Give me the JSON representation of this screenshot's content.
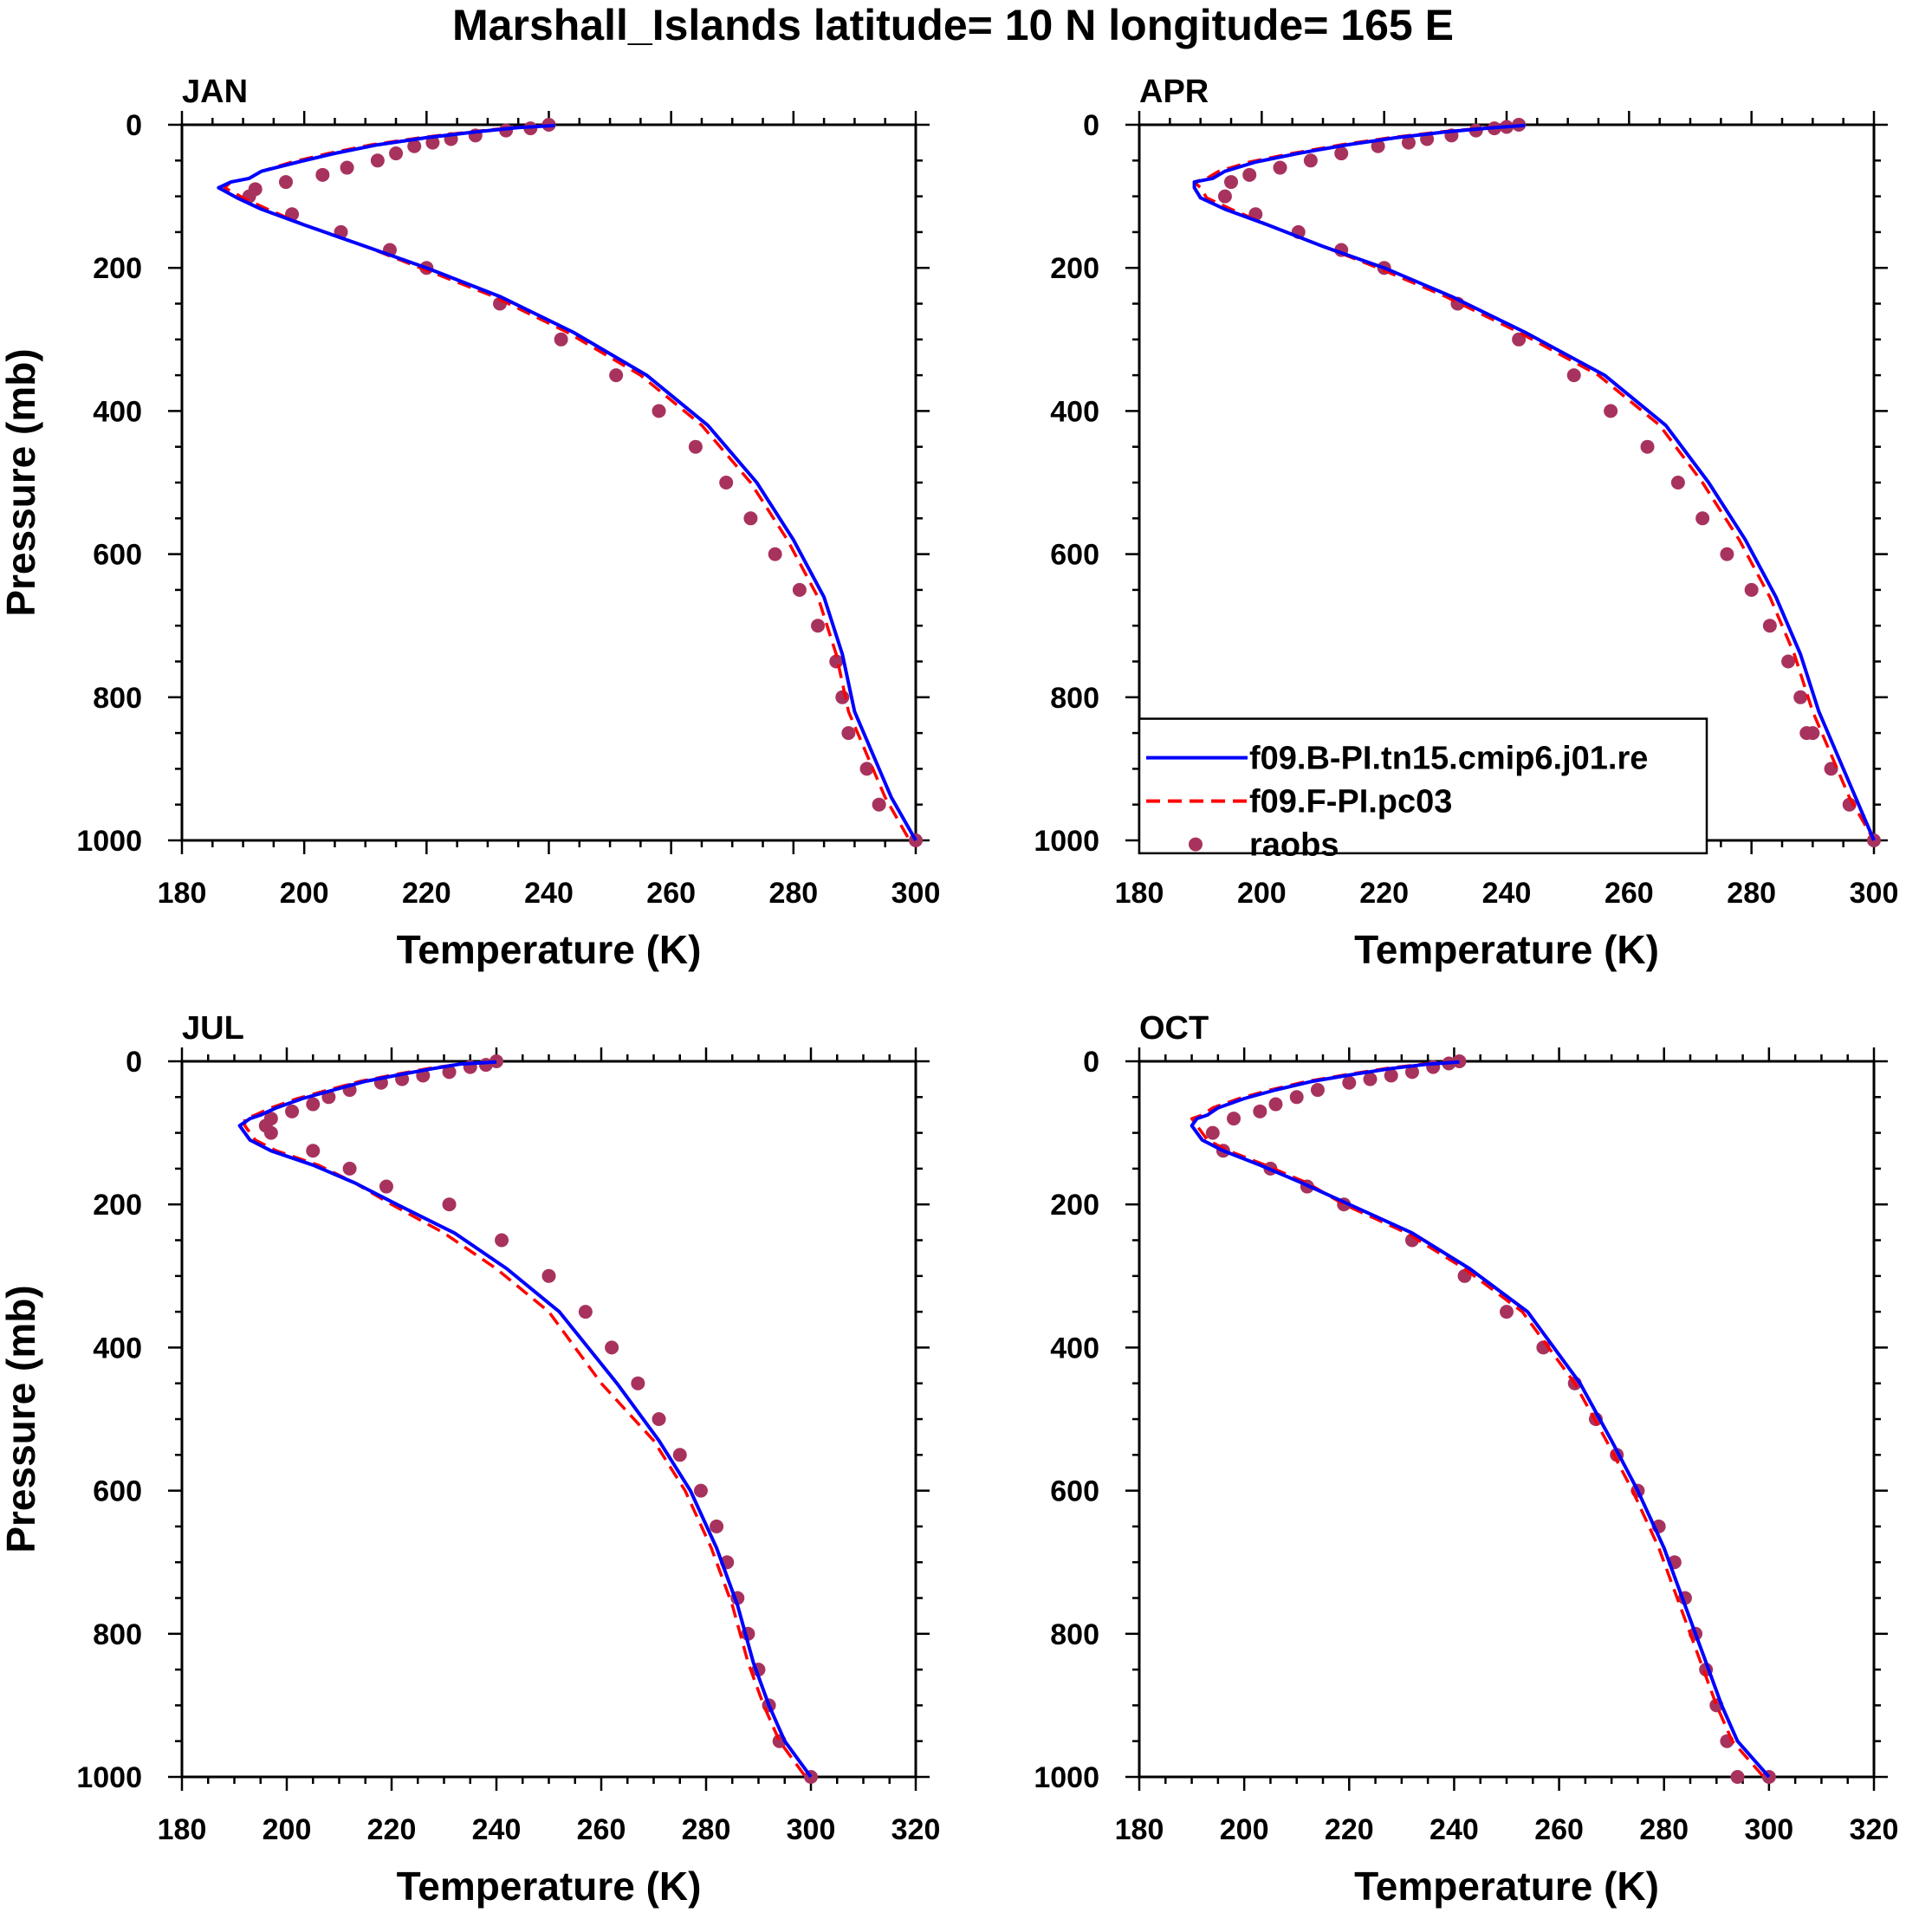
{
  "title": "Marshall_Islands  latitude= 10 N longitude= 165 E",
  "legend": {
    "entries": [
      {
        "label": "f09.B-PI.tn15.cmip6.j01.re",
        "color": "#0000ff",
        "style": "solid"
      },
      {
        "label": "f09.F-PI.pc03",
        "color": "#ff0000",
        "style": "dashed"
      },
      {
        "label": "raobs",
        "color": "#a8325e",
        "style": "marker"
      }
    ]
  },
  "chart_data": [
    {
      "type": "line",
      "title": "JAN",
      "xlabel": "Temperature (K)",
      "ylabel": "Pressure (mb)",
      "xlim": [
        180,
        300
      ],
      "ylim": [
        1000,
        0
      ],
      "xticks": [
        "180",
        "200",
        "220",
        "240",
        "260",
        "280",
        "300"
      ],
      "yticks": [
        "0",
        "200",
        "400",
        "600",
        "800",
        "1000"
      ],
      "series": [
        {
          "name": "f09.B-PI.tn15.cmip6.j01.re",
          "color": "#0000ff",
          "style": "solid",
          "T": [
            241,
            235,
            228,
            220,
            212,
            205,
            199,
            193,
            191,
            188,
            186,
            189,
            193,
            200,
            210,
            220,
            232,
            244,
            256,
            266,
            274,
            280,
            285,
            288,
            290,
            293,
            296,
            300
          ],
          "P": [
            1,
            4,
            10,
            18,
            28,
            40,
            52,
            65,
            75,
            80,
            88,
            102,
            118,
            140,
            170,
            200,
            240,
            290,
            350,
            420,
            500,
            580,
            660,
            740,
            820,
            880,
            940,
            1000
          ]
        },
        {
          "name": "f09.F-PI.pc03",
          "color": "#ff0000",
          "style": "dashed",
          "T": [
            240,
            234,
            227,
            219,
            211,
            204,
            198,
            193,
            191,
            188,
            187,
            190,
            194,
            200,
            210,
            219,
            231,
            243,
            255,
            265,
            273,
            279,
            284,
            287,
            289,
            292,
            295,
            299
          ],
          "P": [
            1,
            4,
            10,
            18,
            28,
            40,
            52,
            65,
            75,
            80,
            88,
            102,
            118,
            140,
            170,
            200,
            240,
            290,
            350,
            420,
            500,
            580,
            660,
            740,
            820,
            880,
            940,
            1000
          ]
        }
      ],
      "raobs": {
        "T": [
          240,
          237,
          233,
          228,
          224,
          221,
          218,
          215,
          212,
          207,
          203,
          197,
          192,
          191,
          198,
          206,
          214,
          220,
          232,
          242,
          251,
          258,
          264,
          269,
          273,
          277,
          281,
          284,
          287,
          288,
          289,
          292,
          294,
          300
        ],
        "P": [
          0,
          5,
          8,
          15,
          20,
          25,
          30,
          40,
          50,
          60,
          70,
          80,
          90,
          100,
          125,
          150,
          175,
          200,
          250,
          300,
          350,
          400,
          450,
          500,
          550,
          600,
          650,
          700,
          750,
          800,
          850,
          900,
          950,
          1000
        ]
      }
    },
    {
      "type": "line",
      "title": "APR",
      "xlabel": "Temperature (K)",
      "ylabel": "",
      "xlim": [
        180,
        300
      ],
      "ylim": [
        1000,
        0
      ],
      "xticks": [
        "180",
        "200",
        "220",
        "240",
        "260",
        "280",
        "300"
      ],
      "yticks": [
        "0",
        "200",
        "400",
        "600",
        "800",
        "1000"
      ],
      "series": [
        {
          "name": "f09.B-PI.tn15.cmip6.j01.re",
          "color": "#0000ff",
          "style": "solid",
          "T": [
            243,
            238,
            230,
            222,
            214,
            206,
            199,
            194,
            192,
            189,
            189,
            190,
            194,
            201,
            210,
            220,
            231,
            243,
            256,
            266,
            273,
            279,
            284,
            288,
            291,
            294,
            297,
            300
          ],
          "P": [
            1,
            4,
            10,
            18,
            28,
            40,
            52,
            65,
            75,
            80,
            88,
            102,
            118,
            140,
            170,
            200,
            240,
            290,
            350,
            420,
            500,
            580,
            660,
            740,
            820,
            880,
            940,
            1000
          ]
        },
        {
          "name": "f09.F-PI.pc03",
          "color": "#ff0000",
          "style": "dashed",
          "T": [
            242,
            237,
            229,
            221,
            213,
            205,
            198,
            193,
            191,
            189,
            190,
            191,
            195,
            201,
            210,
            219,
            230,
            242,
            255,
            265,
            272,
            278,
            283,
            287,
            290,
            293,
            296,
            300
          ],
          "P": [
            1,
            4,
            10,
            18,
            28,
            40,
            52,
            65,
            75,
            80,
            88,
            102,
            118,
            140,
            170,
            200,
            240,
            290,
            350,
            420,
            500,
            580,
            660,
            740,
            820,
            880,
            940,
            1000
          ]
        }
      ],
      "raobs": {
        "T": [
          242,
          240,
          238,
          235,
          231,
          227,
          224,
          219,
          213,
          208,
          203,
          198,
          195,
          194,
          199,
          206,
          213,
          220,
          232,
          242,
          251,
          257,
          263,
          268,
          272,
          276,
          280,
          283,
          286,
          288,
          289,
          290,
          293,
          296,
          300
        ],
        "P": [
          0,
          3,
          5,
          8,
          15,
          20,
          25,
          30,
          40,
          50,
          60,
          70,
          80,
          100,
          125,
          150,
          175,
          200,
          250,
          300,
          350,
          400,
          450,
          500,
          550,
          600,
          650,
          700,
          750,
          800,
          850,
          850,
          900,
          950,
          1000
        ]
      }
    },
    {
      "type": "line",
      "title": "JUL",
      "xlabel": "Temperature (K)",
      "ylabel": "Pressure (mb)",
      "xlim": [
        180,
        320
      ],
      "ylim": [
        1000,
        0
      ],
      "xticks": [
        "180",
        "200",
        "220",
        "240",
        "260",
        "280",
        "300",
        "320"
      ],
      "yticks": [
        "0",
        "200",
        "400",
        "600",
        "800",
        "1000"
      ],
      "series": [
        {
          "name": "f09.B-PI.tn15.cmip6.j01.re",
          "color": "#0000ff",
          "style": "solid",
          "T": [
            240,
            233,
            228,
            222,
            215,
            209,
            203,
            198,
            195,
            193,
            191,
            193,
            197,
            205,
            213,
            221,
            232,
            242,
            252,
            263,
            271,
            277,
            282,
            286,
            289,
            292,
            295,
            300
          ],
          "P": [
            1,
            4,
            10,
            18,
            28,
            40,
            52,
            65,
            75,
            80,
            90,
            110,
            125,
            145,
            170,
            200,
            240,
            290,
            350,
            450,
            530,
            600,
            680,
            760,
            840,
            900,
            950,
            1000
          ]
        },
        {
          "name": "f09.F-PI.pc03",
          "color": "#ff0000",
          "style": "dashed",
          "T": [
            240,
            233,
            227,
            221,
            214,
            208,
            202,
            197,
            194,
            192,
            192,
            194,
            198,
            206,
            213,
            220,
            230,
            240,
            250,
            260,
            270,
            276,
            281,
            285,
            288,
            291,
            294,
            299
          ],
          "P": [
            1,
            4,
            10,
            18,
            28,
            40,
            52,
            65,
            75,
            80,
            90,
            110,
            125,
            145,
            170,
            200,
            240,
            290,
            350,
            450,
            530,
            600,
            680,
            760,
            840,
            900,
            950,
            1000
          ]
        }
      ],
      "raobs": {
        "T": [
          240,
          238,
          235,
          231,
          226,
          222,
          218,
          212,
          208,
          205,
          201,
          197,
          196,
          197,
          205,
          212,
          219,
          231,
          241,
          250,
          257,
          262,
          267,
          271,
          275,
          279,
          282,
          284,
          286,
          288,
          290,
          292,
          294,
          300
        ],
        "P": [
          0,
          5,
          8,
          15,
          20,
          25,
          30,
          40,
          50,
          60,
          70,
          80,
          90,
          100,
          125,
          150,
          175,
          200,
          250,
          300,
          350,
          400,
          450,
          500,
          550,
          600,
          650,
          700,
          750,
          800,
          850,
          900,
          950,
          1000
        ]
      }
    },
    {
      "type": "line",
      "title": "OCT",
      "xlabel": "Temperature (K)",
      "ylabel": "",
      "xlim": [
        180,
        320
      ],
      "ylim": [
        1000,
        0
      ],
      "xticks": [
        "180",
        "200",
        "220",
        "240",
        "260",
        "280",
        "300",
        "320"
      ],
      "yticks": [
        "0",
        "200",
        "400",
        "600",
        "800",
        "1000"
      ],
      "series": [
        {
          "name": "f09.B-PI.tn15.cmip6.j01.re",
          "color": "#0000ff",
          "style": "solid",
          "T": [
            241,
            235,
            228,
            221,
            213,
            206,
            200,
            195,
            193,
            191,
            190,
            192,
            196,
            203,
            211,
            220,
            232,
            243,
            254,
            264,
            270,
            275,
            280,
            284,
            288,
            291,
            294,
            300
          ],
          "P": [
            1,
            4,
            10,
            18,
            28,
            40,
            52,
            65,
            75,
            80,
            90,
            110,
            125,
            145,
            170,
            200,
            240,
            290,
            350,
            450,
            530,
            600,
            680,
            760,
            840,
            900,
            950,
            1000
          ]
        },
        {
          "name": "f09.F-PI.pc03",
          "color": "#ff0000",
          "style": "dashed",
          "T": [
            240,
            234,
            227,
            220,
            212,
            205,
            199,
            194,
            192,
            190,
            191,
            193,
            197,
            204,
            212,
            219,
            231,
            242,
            253,
            263,
            269,
            274,
            279,
            283,
            287,
            290,
            293,
            299
          ],
          "P": [
            1,
            4,
            10,
            18,
            28,
            40,
            52,
            65,
            75,
            80,
            90,
            110,
            125,
            145,
            170,
            200,
            240,
            290,
            350,
            450,
            530,
            600,
            680,
            760,
            840,
            900,
            950,
            1000
          ]
        }
      ],
      "raobs": {
        "T": [
          241,
          239,
          236,
          232,
          228,
          224,
          220,
          214,
          210,
          206,
          203,
          198,
          194,
          196,
          205,
          212,
          219,
          232,
          242,
          250,
          257,
          263,
          267,
          271,
          275,
          279,
          282,
          284,
          286,
          288,
          290,
          292,
          294,
          300
        ],
        "P": [
          0,
          3,
          8,
          15,
          20,
          25,
          30,
          40,
          50,
          60,
          70,
          80,
          100,
          125,
          150,
          175,
          200,
          250,
          300,
          350,
          400,
          450,
          500,
          550,
          600,
          650,
          700,
          750,
          800,
          850,
          900,
          950,
          1000,
          1000
        ]
      }
    }
  ]
}
